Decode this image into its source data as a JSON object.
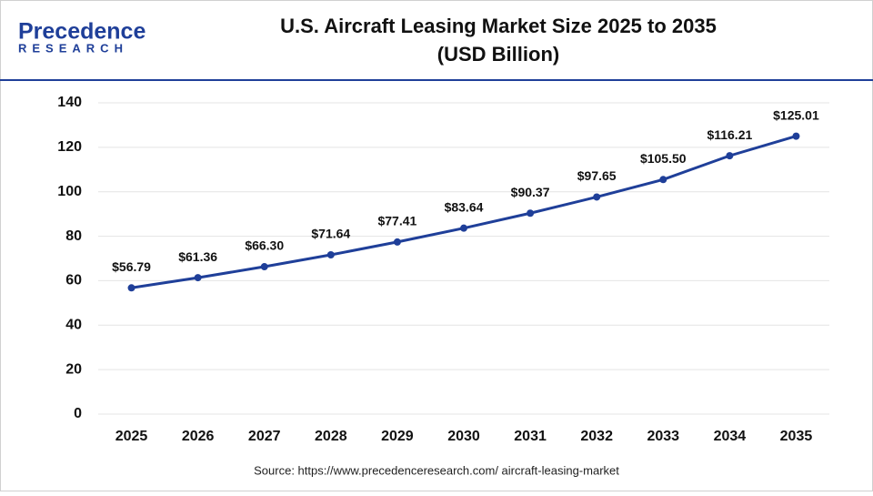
{
  "brand": {
    "name": "Precedence",
    "tagline": "RESEARCH"
  },
  "chart_data": {
    "type": "line",
    "title": "U.S. Aircraft Leasing Market Size 2025 to 2035",
    "subtitle": "(USD Billion)",
    "categories": [
      "2025",
      "2026",
      "2027",
      "2028",
      "2029",
      "2030",
      "2031",
      "2032",
      "2033",
      "2034",
      "2035"
    ],
    "series": [
      {
        "name": "U.S. Aircraft Leasing Market Size",
        "color": "#1f3f99",
        "values": [
          56.79,
          61.36,
          66.3,
          71.64,
          77.41,
          83.64,
          90.37,
          97.65,
          105.5,
          116.21,
          125.01
        ],
        "value_labels": [
          "$56.79",
          "$61.36",
          "$66.30",
          "$71.64",
          "$77.41",
          "$83.64",
          "$90.37",
          "$97.65",
          "$105.50",
          "$116.21",
          "$125.01"
        ]
      }
    ],
    "ylim": [
      0,
      140
    ],
    "yticks": [
      0,
      20,
      40,
      60,
      80,
      100,
      120,
      140
    ],
    "grid": true,
    "source": "Source: https://www.precedenceresearch.com/ aircraft-leasing-market"
  }
}
